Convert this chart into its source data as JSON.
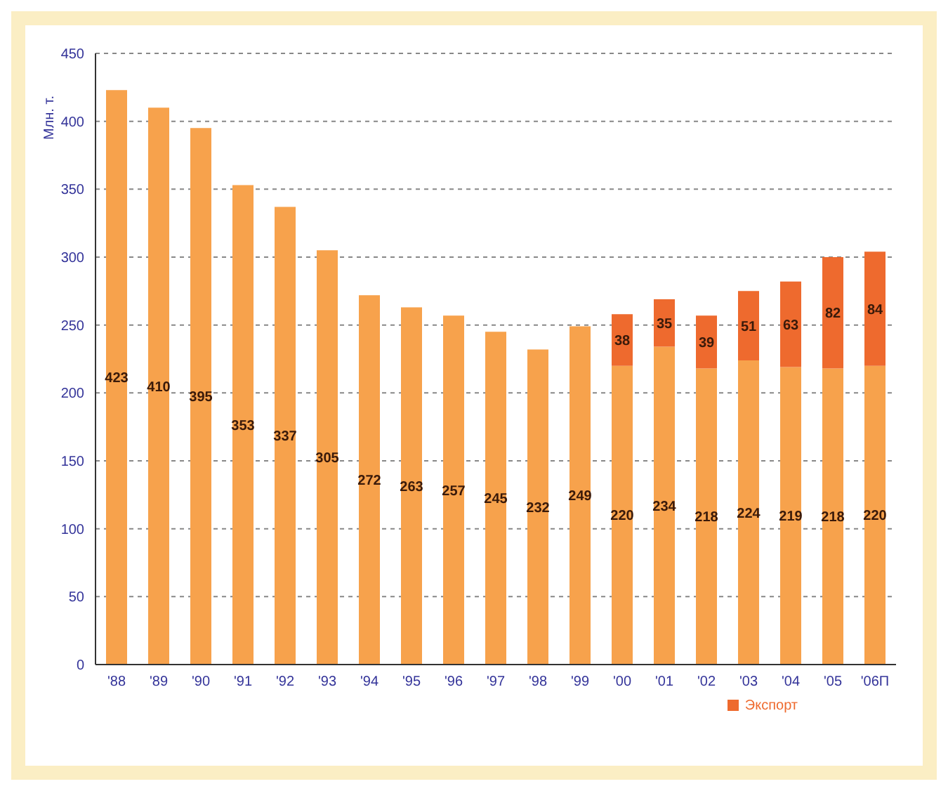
{
  "chart_data": {
    "type": "bar",
    "stacked": true,
    "ylabel": "Млн. т.",
    "categories": [
      "'88",
      "'89",
      "'90",
      "'91",
      "'92",
      "'93",
      "'94",
      "'95",
      "'96",
      "'97",
      "'98",
      "'99",
      "'00",
      "'01",
      "'02",
      "'03",
      "'04",
      "'05",
      "'06П"
    ],
    "series": [
      {
        "color": "#f7a24c",
        "values": [
          423,
          410,
          395,
          353,
          337,
          305,
          272,
          263,
          257,
          245,
          232,
          249,
          220,
          234,
          218,
          224,
          219,
          218,
          220
        ]
      },
      {
        "name": "Экспорт",
        "color": "#ee6a2e",
        "values": [
          null,
          null,
          null,
          null,
          null,
          null,
          null,
          null,
          null,
          null,
          null,
          null,
          38,
          35,
          39,
          51,
          63,
          82,
          84
        ]
      }
    ],
    "ylim": [
      0,
      450
    ],
    "yticks": [
      0,
      50,
      100,
      150,
      200,
      250,
      300,
      350,
      400,
      450
    ],
    "grid": "y",
    "legend": "bottom right",
    "data_labels": true
  }
}
